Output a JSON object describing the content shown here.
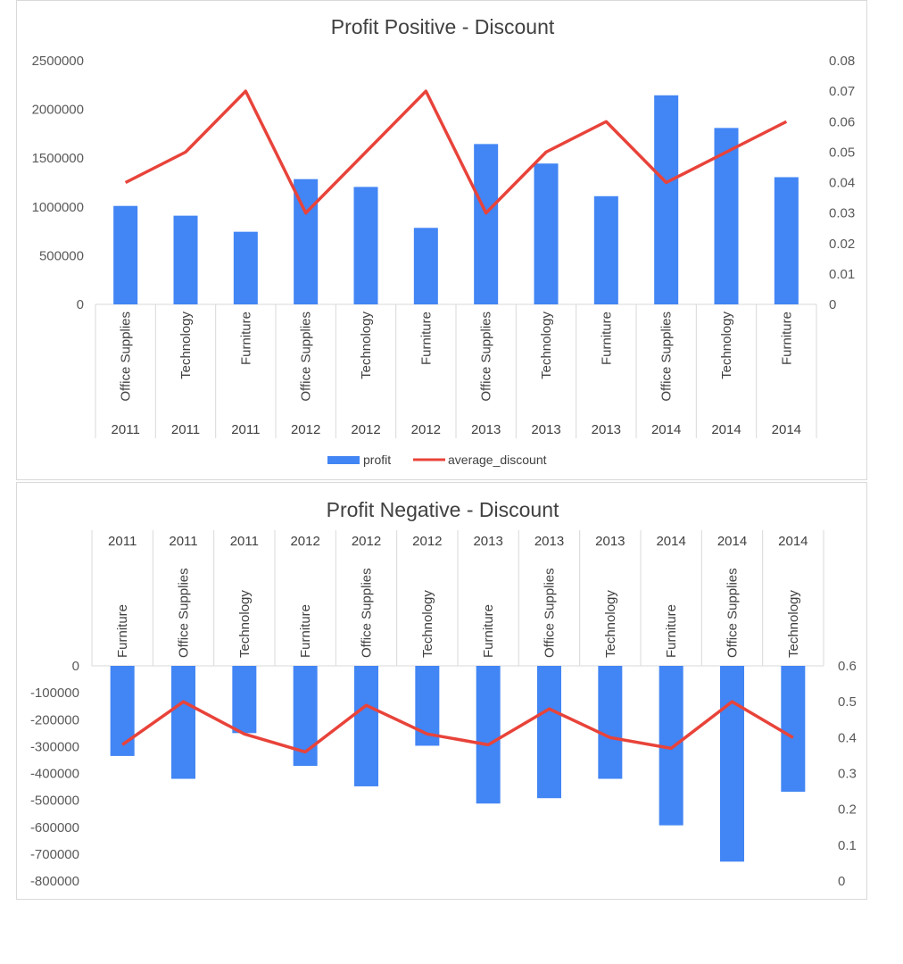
{
  "colors": {
    "bar": "#4285f4",
    "line": "#e8433a",
    "grid": "#d9d9d9"
  },
  "chart_data": [
    {
      "type": "bar",
      "title": "Profit Positive - Discount",
      "categories": [
        "Office Supplies",
        "Technology",
        "Furniture",
        "Office Supplies",
        "Technology",
        "Furniture",
        "Office Supplies",
        "Technology",
        "Furniture",
        "Office Supplies",
        "Technology",
        "Furniture"
      ],
      "years": [
        "2011",
        "2011",
        "2011",
        "2012",
        "2012",
        "2012",
        "2013",
        "2013",
        "2013",
        "2014",
        "2014",
        "2014"
      ],
      "series": [
        {
          "name": "profit",
          "type": "bar",
          "axis": "left",
          "values": [
            1010000,
            910000,
            745000,
            1285000,
            1205000,
            785000,
            1645000,
            1445000,
            1110000,
            2145000,
            1810000,
            1305000
          ]
        },
        {
          "name": "average_discount",
          "type": "line",
          "axis": "right",
          "values": [
            0.04,
            0.05,
            0.07,
            0.03,
            0.05,
            0.07,
            0.03,
            0.05,
            0.06,
            0.04,
            0.05,
            0.06
          ]
        }
      ],
      "y_left": {
        "min": 0,
        "max": 2500000,
        "ticks": [
          "0",
          "500000",
          "1000000",
          "1500000",
          "2000000",
          "2500000"
        ]
      },
      "y_right": {
        "min": 0,
        "max": 0.08,
        "ticks": [
          "0",
          "0.01",
          "0.02",
          "0.03",
          "0.04",
          "0.05",
          "0.06",
          "0.07",
          "0.08"
        ]
      },
      "legend": {
        "position": "bottom",
        "items": [
          "profit",
          "average_discount"
        ]
      },
      "grid": false
    },
    {
      "type": "bar",
      "title": "Profit Negative - Discount",
      "categories": [
        "Furniture",
        "Office Supplies",
        "Technology",
        "Furniture",
        "Office Supplies",
        "Technology",
        "Furniture",
        "Office Supplies",
        "Technology",
        "Furniture",
        "Office Supplies",
        "Technology"
      ],
      "years": [
        "2011",
        "2011",
        "2011",
        "2012",
        "2012",
        "2012",
        "2013",
        "2013",
        "2013",
        "2014",
        "2014",
        "2014"
      ],
      "series": [
        {
          "name": "profit",
          "type": "bar",
          "axis": "left",
          "values": [
            -335000,
            -420000,
            -250000,
            -372000,
            -448000,
            -297000,
            -512000,
            -492000,
            -420000,
            -593000,
            -728000,
            -468000
          ]
        },
        {
          "name": "average_discount",
          "type": "line",
          "axis": "right",
          "values": [
            0.38,
            0.5,
            0.41,
            0.36,
            0.49,
            0.41,
            0.38,
            0.48,
            0.4,
            0.37,
            0.5,
            0.4
          ]
        }
      ],
      "y_left": {
        "min": -800000,
        "max": 0,
        "ticks": [
          "0",
          "-100000",
          "-200000",
          "-300000",
          "-400000",
          "-500000",
          "-600000",
          "-700000",
          "-800000"
        ]
      },
      "y_right": {
        "min": 0,
        "max": 0.6,
        "ticks": [
          "0",
          "0.1",
          "0.2",
          "0.3",
          "0.4",
          "0.5",
          "0.6"
        ]
      },
      "legend": null,
      "grid": false
    }
  ]
}
